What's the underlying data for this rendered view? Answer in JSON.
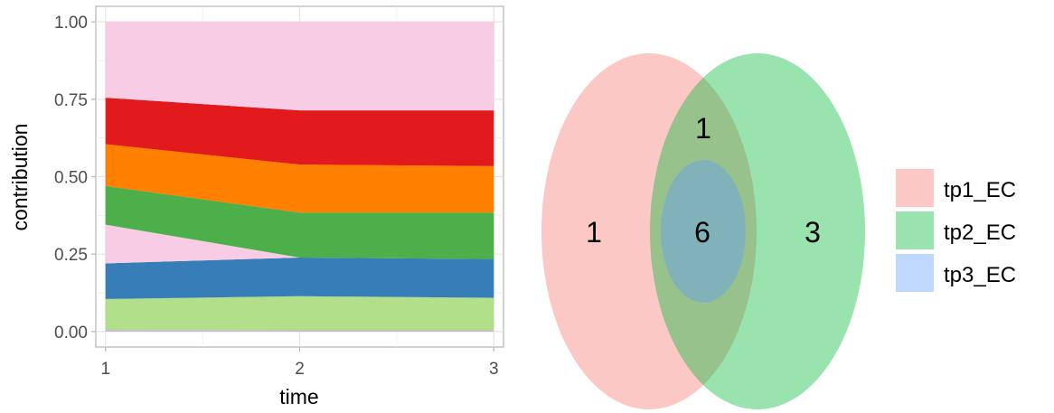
{
  "chart_data": [
    {
      "type": "area",
      "stacked": true,
      "xlabel": "time",
      "ylabel": "contribution",
      "x": [
        1,
        2,
        3
      ],
      "x_ticks": [
        "1",
        "2",
        "3"
      ],
      "y_ticks": [
        "0.00",
        "0.25",
        "0.50",
        "0.75",
        "1.00"
      ],
      "xlim": [
        0.95,
        3.05
      ],
      "ylim": [
        -0.05,
        1.05
      ],
      "grid": true,
      "series": [
        {
          "color": "#CAB2D6",
          "values": [
            0.005,
            0.004,
            0.004
          ]
        },
        {
          "color": "#B2DF8A",
          "values": [
            0.1,
            0.11,
            0.105
          ]
        },
        {
          "color": "#377EB8",
          "values": [
            0.115,
            0.125,
            0.125
          ]
        },
        {
          "color": "#F8CCE4",
          "values": [
            0.125,
            0.0,
            0.0
          ]
        },
        {
          "color": "#4DAF4A",
          "values": [
            0.125,
            0.145,
            0.15
          ]
        },
        {
          "color": "#FF7F00",
          "values": [
            0.135,
            0.155,
            0.15
          ]
        },
        {
          "color": "#E31A1C",
          "values": [
            0.15,
            0.175,
            0.18
          ]
        },
        {
          "color": "#F9CCE5",
          "values": [
            0.245,
            0.286,
            0.286
          ]
        }
      ]
    },
    {
      "type": "venn",
      "sets": [
        {
          "name": "tp1_EC",
          "color": "#F8766D"
        },
        {
          "name": "tp2_EC",
          "color": "#00BA38"
        },
        {
          "name": "tp3_EC",
          "color": "#619CFF"
        }
      ],
      "regions": [
        {
          "sets": [
            "tp1_EC"
          ],
          "count": "1"
        },
        {
          "sets": [
            "tp1_EC",
            "tp2_EC"
          ],
          "count": "1"
        },
        {
          "sets": [
            "tp1_EC",
            "tp2_EC",
            "tp3_EC"
          ],
          "count": "6"
        },
        {
          "sets": [
            "tp2_EC"
          ],
          "count": "3"
        }
      ],
      "legend": [
        "tp1_EC",
        "tp2_EC",
        "tp3_EC"
      ],
      "legend_position": "right"
    }
  ]
}
